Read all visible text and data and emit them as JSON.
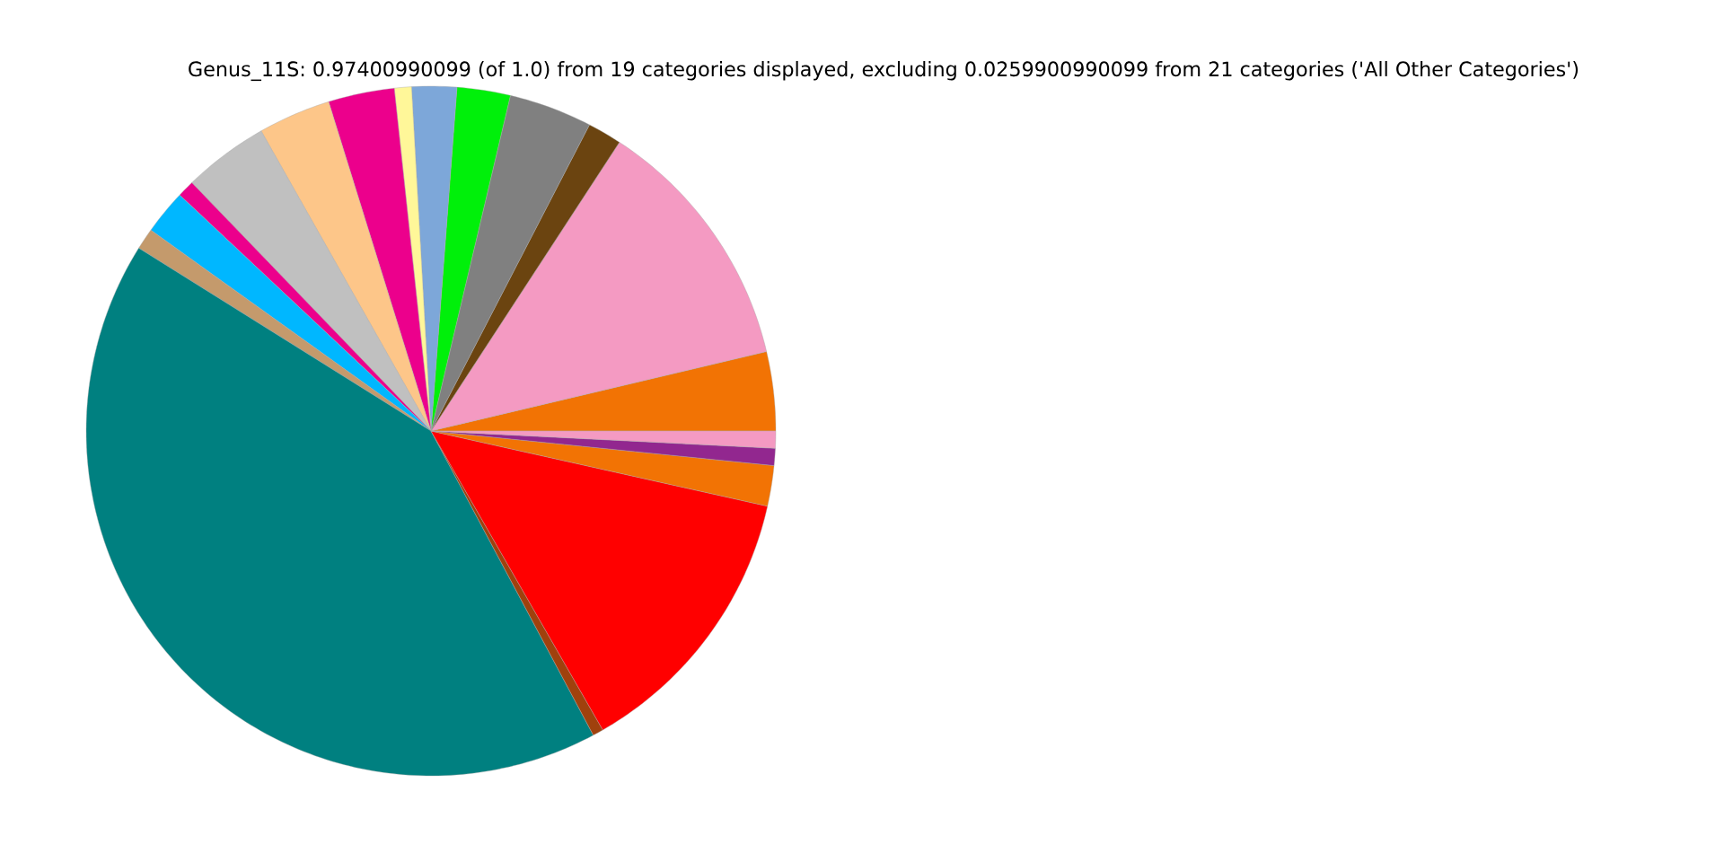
{
  "chart_data": {
    "type": "pie",
    "title": "Genus_11S: 0.97400990099 (of 1.0) from 19 categories displayed, excluding 0.0259900990099 from 21 categories ('All Other Categories')",
    "categories": [
      null,
      null,
      null,
      null,
      null,
      null,
      null,
      null,
      null,
      null,
      null,
      null,
      null,
      null,
      null,
      null,
      null,
      null,
      null
    ],
    "values": [
      3.7,
      12.1,
      1.6,
      3.9,
      2.5,
      2.1,
      0.8,
      3.1,
      3.4,
      4.0,
      0.8,
      2.1,
      1.0,
      41.7,
      0.5,
      13.2,
      1.9,
      0.8,
      0.8
    ],
    "colors": [
      "#f27304",
      "#f49ac2",
      "#6b4410",
      "#808080",
      "#00f00a",
      "#7da7d9",
      "#fff799",
      "#ec008c",
      "#fdc689",
      "#c0c0c0",
      "#ec008c",
      "#00b7ff",
      "#c49a6c",
      "#008080",
      "#a0410d",
      "#ff0000",
      "#f27304",
      "#92278f",
      "#f49ac2"
    ]
  }
}
